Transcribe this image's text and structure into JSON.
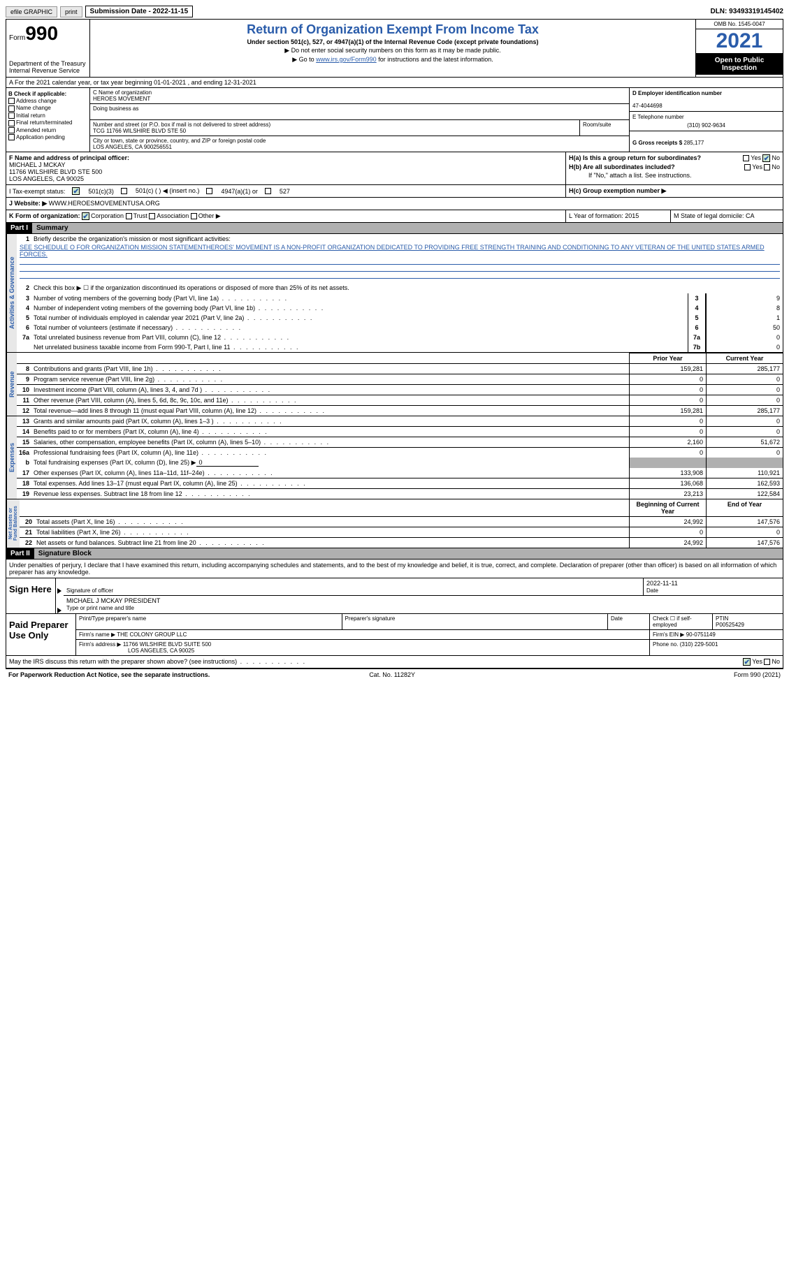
{
  "topbar": {
    "efile": "efile GRAPHIC",
    "print": "print",
    "submission": "Submission Date - 2022-11-15",
    "dln": "DLN: 93493319145402"
  },
  "header": {
    "form_label": "Form",
    "form_num": "990",
    "dept": "Department of the Treasury Internal Revenue Service",
    "title": "Return of Organization Exempt From Income Tax",
    "sub": "Under section 501(c), 527, or 4947(a)(1) of the Internal Revenue Code (except private foundations)",
    "note1": "▶ Do not enter social security numbers on this form as it may be made public.",
    "note2_pre": "▶ Go to ",
    "note2_link": "www.irs.gov/Form990",
    "note2_post": " for instructions and the latest information.",
    "omb": "OMB No. 1545-0047",
    "year": "2021",
    "open": "Open to Public Inspection"
  },
  "rowA": "A For the 2021 calendar year, or tax year beginning 01-01-2021    , and ending 12-31-2021",
  "colB": {
    "hdr": "B Check if applicable:",
    "items": [
      "Address change",
      "Name change",
      "Initial return",
      "Final return/terminated",
      "Amended return",
      "Application pending"
    ]
  },
  "colC": {
    "name_lbl": "C Name of organization",
    "name": "HEROES MOVEMENT",
    "dba_lbl": "Doing business as",
    "addr_lbl": "Number and street (or P.O. box if mail is not delivered to street address)",
    "addr": "TCG 11766 WILSHIRE BLVD STE 50",
    "room_lbl": "Room/suite",
    "city_lbl": "City or town, state or province, country, and ZIP or foreign postal code",
    "city": "LOS ANGELES, CA  900256551"
  },
  "colD": {
    "ein_lbl": "D Employer identification number",
    "ein": "47-4044698",
    "tel_lbl": "E Telephone number",
    "tel": "(310) 902-9634",
    "gross_lbl": "G Gross receipts $",
    "gross": "285,177"
  },
  "rowF": {
    "f_lbl": "F Name and address of principal officer:",
    "f_name": "MICHAEL J MCKAY",
    "f_addr1": "11766 WILSHIRE BLVD STE 500",
    "f_addr2": "LOS ANGELES, CA  90025",
    "ha": "H(a)  Is this a group return for subordinates?",
    "hb": "H(b)  Are all subordinates included?",
    "hb_note": "If \"No,\" attach a list. See instructions.",
    "hc": "H(c)  Group exemption number ▶",
    "yes": "Yes",
    "no": "No"
  },
  "rowI": {
    "lbl": "I    Tax-exempt status:",
    "o1": "501(c)(3)",
    "o2": "501(c) (  ) ◀ (insert no.)",
    "o3": "4947(a)(1) or",
    "o4": "527"
  },
  "rowJ": {
    "lbl": "J   Website: ▶",
    "val": "WWW.HEROESMOVEMENTUSA.ORG"
  },
  "rowK": {
    "lbl": "K Form of organization:",
    "o1": "Corporation",
    "o2": "Trust",
    "o3": "Association",
    "o4": "Other ▶",
    "l": "L Year of formation: 2015",
    "m": "M State of legal domicile: CA"
  },
  "part1": {
    "hdr": "Part I",
    "title": "Summary"
  },
  "p1_1_lbl": "Briefly describe the organization's mission or most significant activities:",
  "p1_1_txt": "SEE SCHEDULE O FOR ORGANIZATION MISSION STATEMENTHEROES' MOVEMENT IS A NON-PROFIT ORGANIZATION DEDICATED TO PROVIDING FREE STRENGTH TRAINING AND CONDITIONING TO ANY VETERAN OF THE UNITED STATES ARMED FORCES.",
  "p1_2": "Check this box ▶ ☐  if the organization discontinued its operations or disposed of more than 25% of its net assets.",
  "lines_ag": [
    {
      "n": "3",
      "t": "Number of voting members of the governing body (Part VI, line 1a)",
      "b": "3",
      "v": "9"
    },
    {
      "n": "4",
      "t": "Number of independent voting members of the governing body (Part VI, line 1b)",
      "b": "4",
      "v": "8"
    },
    {
      "n": "5",
      "t": "Total number of individuals employed in calendar year 2021 (Part V, line 2a)",
      "b": "5",
      "v": "1"
    },
    {
      "n": "6",
      "t": "Total number of volunteers (estimate if necessary)",
      "b": "6",
      "v": "50"
    },
    {
      "n": "7a",
      "t": "Total unrelated business revenue from Part VIII, column (C), line 12",
      "b": "7a",
      "v": "0"
    },
    {
      "n": "",
      "t": "Net unrelated business taxable income from Form 990-T, Part I, line 11",
      "b": "7b",
      "v": "0"
    }
  ],
  "col_hdrs": {
    "prior": "Prior Year",
    "current": "Current Year",
    "boy": "Beginning of Current Year",
    "eoy": "End of Year"
  },
  "rev": [
    {
      "n": "8",
      "t": "Contributions and grants (Part VIII, line 1h)",
      "p": "159,281",
      "c": "285,177"
    },
    {
      "n": "9",
      "t": "Program service revenue (Part VIII, line 2g)",
      "p": "0",
      "c": "0"
    },
    {
      "n": "10",
      "t": "Investment income (Part VIII, column (A), lines 3, 4, and 7d )",
      "p": "0",
      "c": "0"
    },
    {
      "n": "11",
      "t": "Other revenue (Part VIII, column (A), lines 5, 6d, 8c, 9c, 10c, and 11e)",
      "p": "0",
      "c": "0"
    },
    {
      "n": "12",
      "t": "Total revenue—add lines 8 through 11 (must equal Part VIII, column (A), line 12)",
      "p": "159,281",
      "c": "285,177"
    }
  ],
  "exp": [
    {
      "n": "13",
      "t": "Grants and similar amounts paid (Part IX, column (A), lines 1–3 )",
      "p": "0",
      "c": "0"
    },
    {
      "n": "14",
      "t": "Benefits paid to or for members (Part IX, column (A), line 4)",
      "p": "0",
      "c": "0"
    },
    {
      "n": "15",
      "t": "Salaries, other compensation, employee benefits (Part IX, column (A), lines 5–10)",
      "p": "2,160",
      "c": "51,672"
    },
    {
      "n": "16a",
      "t": "Professional fundraising fees (Part IX, column (A), line 11e)",
      "p": "0",
      "c": "0"
    }
  ],
  "exp_b": {
    "n": "b",
    "t": "Total fundraising expenses (Part IX, column (D), line 25) ▶",
    "v": "0"
  },
  "exp2": [
    {
      "n": "17",
      "t": "Other expenses (Part IX, column (A), lines 11a–11d, 11f–24e)",
      "p": "133,908",
      "c": "110,921"
    },
    {
      "n": "18",
      "t": "Total expenses. Add lines 13–17 (must equal Part IX, column (A), line 25)",
      "p": "136,068",
      "c": "162,593"
    },
    {
      "n": "19",
      "t": "Revenue less expenses. Subtract line 18 from line 12",
      "p": "23,213",
      "c": "122,584"
    }
  ],
  "na": [
    {
      "n": "20",
      "t": "Total assets (Part X, line 16)",
      "p": "24,992",
      "c": "147,576"
    },
    {
      "n": "21",
      "t": "Total liabilities (Part X, line 26)",
      "p": "0",
      "c": "0"
    },
    {
      "n": "22",
      "t": "Net assets or fund balances. Subtract line 21 from line 20",
      "p": "24,992",
      "c": "147,576"
    }
  ],
  "part2": {
    "hdr": "Part II",
    "title": "Signature Block"
  },
  "jurat": "Under penalties of perjury, I declare that I have examined this return, including accompanying schedules and statements, and to the best of my knowledge and belief, it is true, correct, and complete. Declaration of preparer (other than officer) is based on all information of which preparer has any knowledge.",
  "sign": {
    "lbl": "Sign Here",
    "sig_lbl": "Signature of officer",
    "date_lbl": "Date",
    "date": "2022-11-11",
    "name": "MICHAEL J MCKAY PRESIDENT",
    "name_lbl": "Type or print name and title"
  },
  "paid": {
    "lbl": "Paid Preparer Use Only",
    "r1": {
      "a": "Print/Type preparer's name",
      "b": "Preparer's signature",
      "c": "Date",
      "d": "Check ☐ if self-employed",
      "e": "PTIN",
      "ev": "P00525429"
    },
    "r2": {
      "a": "Firm's name    ▶",
      "av": "THE COLONY GROUP LLC",
      "b": "Firm's EIN ▶",
      "bv": "90-0751149"
    },
    "r3": {
      "a": "Firm's address ▶",
      "av": "11766 WILSHIRE BLVD SUITE 500",
      "av2": "LOS ANGELES, CA  90025",
      "b": "Phone no.",
      "bv": "(310) 229-5001"
    }
  },
  "discuss": "May the IRS discuss this return with the preparer shown above? (see instructions)",
  "foot": {
    "l": "For Paperwork Reduction Act Notice, see the separate instructions.",
    "m": "Cat. No. 11282Y",
    "r": "Form 990 (2021)"
  }
}
